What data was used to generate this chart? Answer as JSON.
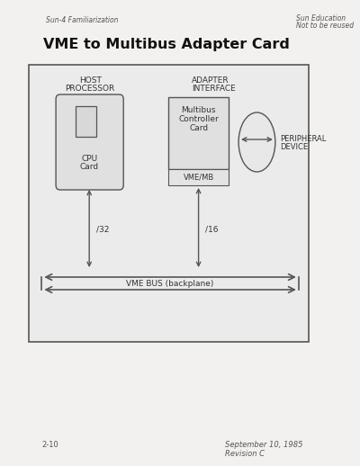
{
  "title": "VME to Multibus Adapter Card",
  "header_left": "Sun-4 Familiarization",
  "header_right_line1": "Sun Education",
  "header_right_line2": "Not to be reused",
  "footer_left": "2-10",
  "footer_right_line1": "September 10, 1985",
  "footer_right_line2": "Revision C",
  "bg_color": "#f0efee",
  "text_color": "#333333",
  "line_color": "#555555",
  "box_facecolor": "#e8e8e8",
  "page_facecolor": "#f2f1f0"
}
